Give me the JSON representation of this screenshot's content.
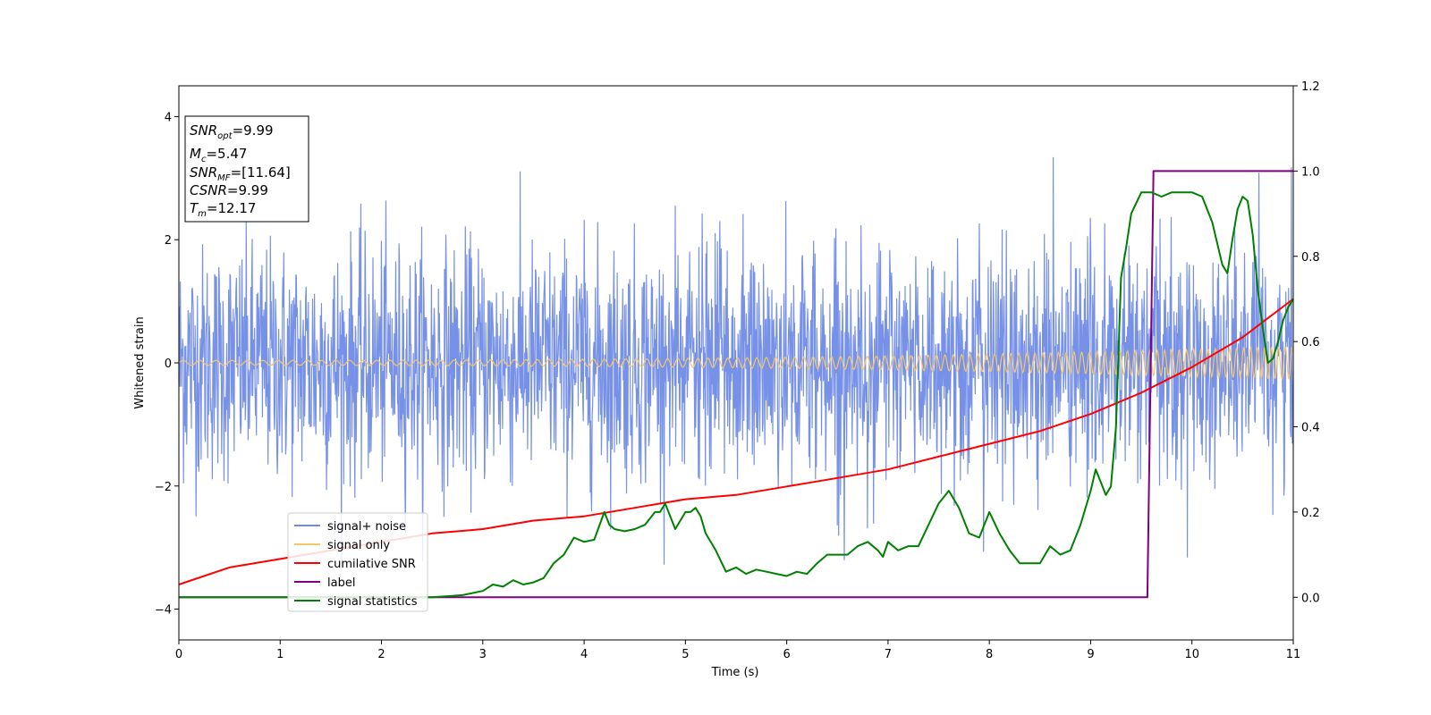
{
  "chart_data": {
    "type": "line",
    "xlabel": "Time (s)",
    "ylabel": "Whitened strain",
    "xlim": [
      0,
      11
    ],
    "ylim": [
      -4.5,
      4.5
    ],
    "y2lim": [
      -0.1,
      1.2
    ],
    "x_ticks": [
      "0",
      "1",
      "2",
      "3",
      "4",
      "5",
      "6",
      "7",
      "8",
      "9",
      "10",
      "11"
    ],
    "y_ticks": [
      "4",
      "2",
      "0",
      "−2",
      "−4"
    ],
    "y2_ticks": [
      "1.2",
      "1.0",
      "0.8",
      "0.6",
      "0.4",
      "0.2",
      "0.0"
    ],
    "grid": false,
    "legend_position": "lower-left",
    "info_box": {
      "snr_opt": {
        "base": "SNR",
        "sub": "opt",
        "value": "=9.99"
      },
      "mc": {
        "base": "M",
        "sub": "c",
        "value": "=5.47"
      },
      "snr_mf": {
        "base": "SNR",
        "sub": "MF",
        "value": "=[11.64]"
      },
      "csnr": {
        "base": "CSNR",
        "value": "=9.99"
      },
      "tm": {
        "base": "T",
        "sub": "m",
        "value": "=12.17"
      }
    },
    "series": [
      {
        "name": "signal+ noise",
        "axis": "left",
        "color": "#6f8be6",
        "kind": "noise",
        "std": 0.95,
        "envelope_max": 3.4,
        "points": 2400
      },
      {
        "name": "signal only",
        "axis": "left",
        "color": "#f5c66b",
        "kind": "chirp",
        "amplitude_start": 0.04,
        "amplitude_end": 0.27
      },
      {
        "name": "cumilative SNR",
        "axis": "right",
        "color": "#ff0000",
        "x": [
          0,
          0.5,
          1,
          1.5,
          2,
          2.5,
          3,
          3.5,
          4,
          4.5,
          5,
          5.5,
          6,
          6.5,
          7,
          7.5,
          8,
          8.5,
          9,
          9.5,
          10,
          10.5,
          11
        ],
        "y": [
          0.03,
          0.07,
          0.09,
          0.11,
          0.13,
          0.15,
          0.16,
          0.18,
          0.19,
          0.21,
          0.23,
          0.24,
          0.26,
          0.28,
          0.3,
          0.33,
          0.36,
          0.39,
          0.43,
          0.48,
          0.54,
          0.61,
          0.7
        ]
      },
      {
        "name": "label",
        "axis": "right",
        "color": "#800080",
        "x": [
          0,
          9.56,
          9.62,
          11
        ],
        "y": [
          0,
          0,
          1,
          1
        ]
      },
      {
        "name": "signal statistics",
        "axis": "right",
        "color": "#008000",
        "x": [
          0,
          0.5,
          1,
          1.5,
          2,
          2.5,
          2.8,
          3.0,
          3.1,
          3.2,
          3.3,
          3.4,
          3.5,
          3.6,
          3.7,
          3.8,
          3.9,
          4.0,
          4.1,
          4.2,
          4.25,
          4.3,
          4.4,
          4.5,
          4.6,
          4.7,
          4.75,
          4.8,
          4.85,
          4.9,
          5.0,
          5.05,
          5.1,
          5.15,
          5.2,
          5.3,
          5.4,
          5.5,
          5.6,
          5.7,
          5.8,
          5.9,
          6.0,
          6.1,
          6.2,
          6.3,
          6.4,
          6.5,
          6.6,
          6.7,
          6.8,
          6.9,
          6.95,
          7.0,
          7.1,
          7.2,
          7.3,
          7.4,
          7.5,
          7.6,
          7.7,
          7.8,
          7.9,
          8.0,
          8.1,
          8.2,
          8.3,
          8.4,
          8.5,
          8.6,
          8.7,
          8.8,
          8.9,
          9.0,
          9.05,
          9.1,
          9.15,
          9.2,
          9.25,
          9.3,
          9.35,
          9.4,
          9.5,
          9.6,
          9.7,
          9.8,
          9.9,
          10.0,
          10.1,
          10.2,
          10.3,
          10.35,
          10.4,
          10.45,
          10.5,
          10.55,
          10.6,
          10.65,
          10.7,
          10.75,
          10.8,
          10.85,
          10.9,
          10.95,
          11.0
        ],
        "y": [
          0.0,
          0.0,
          0.0,
          0.0,
          0.0,
          0.0,
          0.005,
          0.015,
          0.03,
          0.025,
          0.04,
          0.03,
          0.035,
          0.045,
          0.08,
          0.1,
          0.14,
          0.13,
          0.135,
          0.2,
          0.17,
          0.16,
          0.155,
          0.16,
          0.17,
          0.2,
          0.2,
          0.22,
          0.19,
          0.16,
          0.2,
          0.2,
          0.21,
          0.19,
          0.15,
          0.11,
          0.06,
          0.07,
          0.055,
          0.065,
          0.06,
          0.055,
          0.05,
          0.06,
          0.055,
          0.08,
          0.1,
          0.1,
          0.1,
          0.12,
          0.13,
          0.11,
          0.095,
          0.13,
          0.11,
          0.12,
          0.12,
          0.17,
          0.22,
          0.25,
          0.21,
          0.15,
          0.14,
          0.2,
          0.15,
          0.11,
          0.08,
          0.08,
          0.08,
          0.12,
          0.1,
          0.11,
          0.17,
          0.25,
          0.3,
          0.27,
          0.24,
          0.26,
          0.4,
          0.75,
          0.82,
          0.9,
          0.95,
          0.95,
          0.94,
          0.95,
          0.95,
          0.95,
          0.94,
          0.88,
          0.78,
          0.76,
          0.84,
          0.91,
          0.94,
          0.93,
          0.85,
          0.72,
          0.63,
          0.55,
          0.56,
          0.6,
          0.65,
          0.68,
          0.7
        ]
      }
    ]
  }
}
